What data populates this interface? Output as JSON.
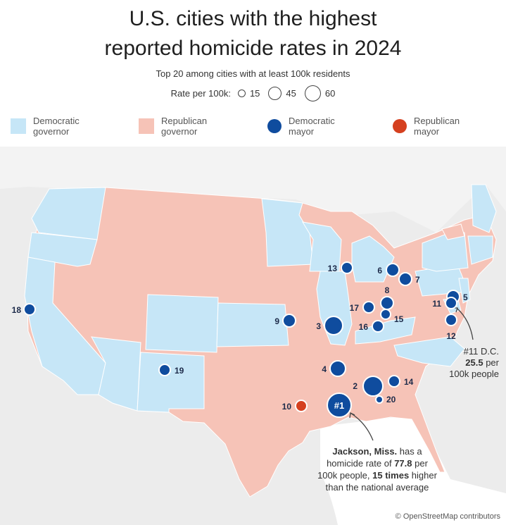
{
  "title": {
    "line1": "U.S. cities with the highest",
    "line2": "reported homicide rates in 2024"
  },
  "subtitle": "Top 20 among cities with at least 100k residents",
  "size_key": {
    "label": "Rate per 100k:",
    "values": [
      "15",
      "45",
      "60"
    ]
  },
  "legend": [
    {
      "label_line1": "Democratic",
      "label_line2": "governor",
      "color": "#c6e6f7"
    },
    {
      "label_line1": "Republican",
      "label_line2": "governor",
      "color": "#f6c3b7"
    },
    {
      "label_line1": "Democratic",
      "label_line2": "mayor",
      "color": "#0f4c9e"
    },
    {
      "label_line1": "Republican",
      "label_line2": "mayor",
      "color": "#d5401f"
    }
  ],
  "colors": {
    "dem_state": "#c6e6f7",
    "rep_state": "#f6c3b7",
    "dem_city": "#0f4c9e",
    "rep_city": "#d5401f",
    "land_outside": "#ececec",
    "water": "#ffffff"
  },
  "cities": [
    {
      "rank": "#1",
      "party": "dem",
      "rate": 77.8
    },
    {
      "rank": "2",
      "party": "dem"
    },
    {
      "rank": "3",
      "party": "dem"
    },
    {
      "rank": "4",
      "party": "dem"
    },
    {
      "rank": "5",
      "party": "dem"
    },
    {
      "rank": "6",
      "party": "dem"
    },
    {
      "rank": "7",
      "party": "dem"
    },
    {
      "rank": "8",
      "party": "dem"
    },
    {
      "rank": "9",
      "party": "dem"
    },
    {
      "rank": "10",
      "party": "rep"
    },
    {
      "rank": "11",
      "party": "dem",
      "rate": 25.5
    },
    {
      "rank": "12",
      "party": "dem"
    },
    {
      "rank": "13",
      "party": "dem"
    },
    {
      "rank": "14",
      "party": "dem"
    },
    {
      "rank": "15",
      "party": "dem"
    },
    {
      "rank": "16",
      "party": "dem"
    },
    {
      "rank": "17",
      "party": "dem"
    },
    {
      "rank": "18",
      "party": "dem"
    },
    {
      "rank": "19",
      "party": "dem"
    },
    {
      "rank": "20",
      "party": "dem"
    }
  ],
  "annotations": {
    "dc": {
      "line1": "#11 D.C.",
      "line2_bold": "25.5",
      "line2_rest": " per",
      "line3": "100k people"
    },
    "jackson": {
      "line1_bold": "Jackson, Miss.",
      "line1_rest": " has a",
      "line2_a": "homicide rate of ",
      "line2_bold": "77.8",
      "line2_b": " per",
      "line3_a": "100k people, ",
      "line3_bold": "15 times",
      "line3_b": " higher",
      "line4": "than the national average"
    }
  },
  "credit": "© OpenStreetMap contributors"
}
